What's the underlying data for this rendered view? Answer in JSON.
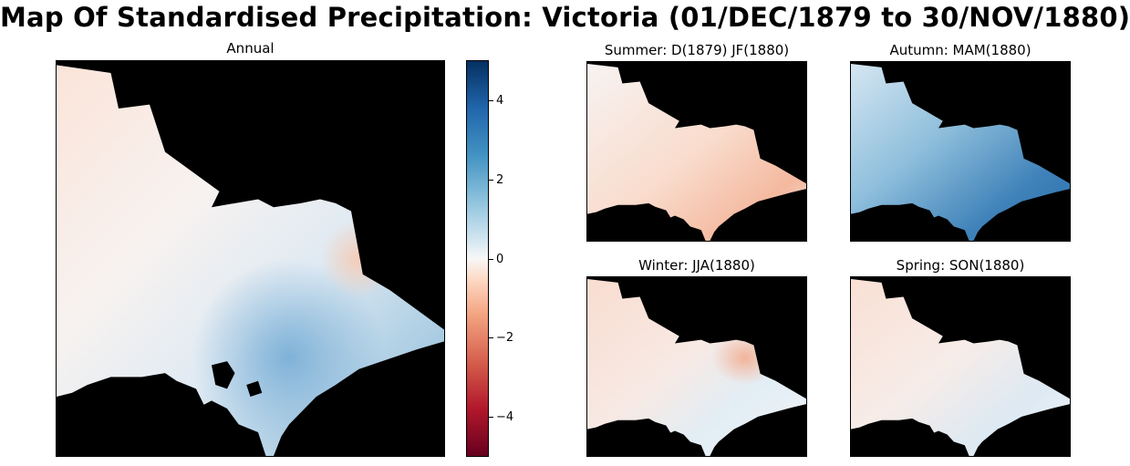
{
  "title": "Map Of Standardised Precipitation: Victoria (01/DEC/1879 to 30/NOV/1880)",
  "panels": {
    "annual": {
      "title": "Annual"
    },
    "summer": {
      "title": "Summer: D(1879) JF(1880)"
    },
    "autumn": {
      "title": "Autumn: MAM(1880)"
    },
    "winter": {
      "title": "Winter: JJA(1880)"
    },
    "spring": {
      "title": "Spring: SON(1880)"
    }
  },
  "colorbar": {
    "ticks": [
      {
        "value": 4,
        "label": "4"
      },
      {
        "value": 2,
        "label": "2"
      },
      {
        "value": 0,
        "label": "0"
      },
      {
        "value": -2,
        "label": "−2"
      },
      {
        "value": -4,
        "label": "−4"
      }
    ],
    "range": [
      -5,
      5
    ],
    "colormap": "RdBu"
  },
  "colors": {
    "background": "#000000",
    "negative": "#d6604d",
    "positive": "#2166ac"
  }
}
